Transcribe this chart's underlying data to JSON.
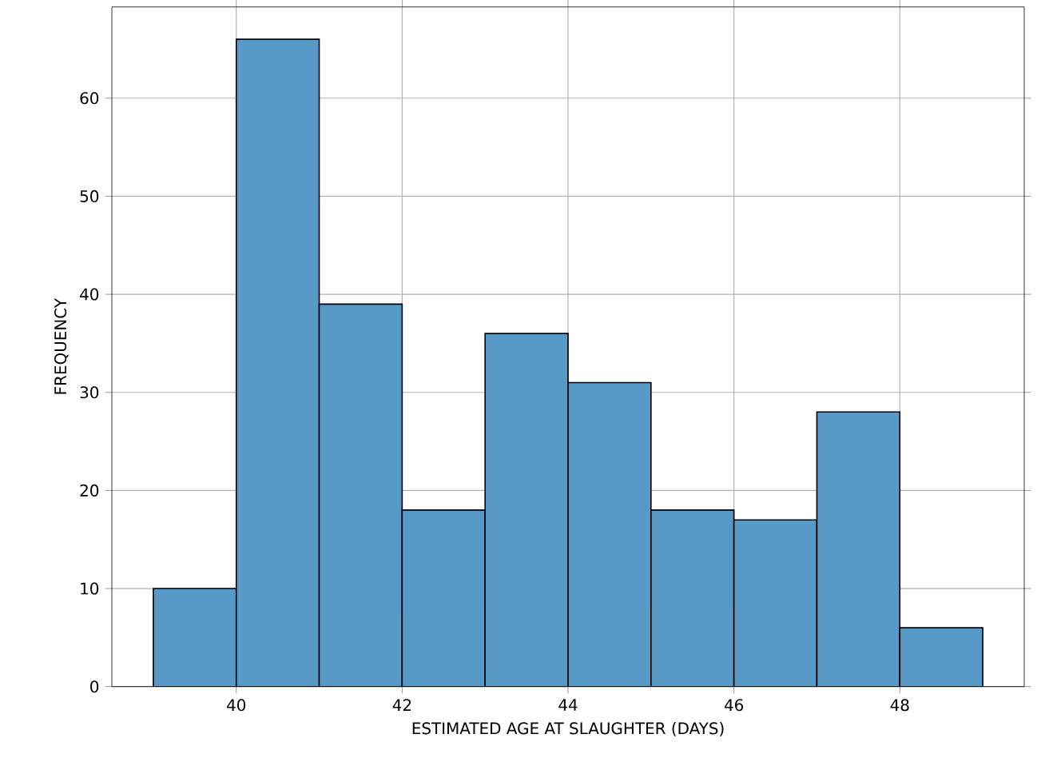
{
  "chart_data": {
    "type": "histogram",
    "xlabel": "ESTIMATED AGE AT SLAUGHTER (DAYS)",
    "ylabel": "FREQUENCY",
    "bins": [
      39,
      40,
      41,
      42,
      43,
      44,
      45,
      46,
      47,
      48,
      49
    ],
    "values": [
      10,
      66,
      39,
      18,
      36,
      31,
      18,
      17,
      28,
      6
    ],
    "color": "#5799c7",
    "xlim": [
      38.5,
      49.5
    ],
    "ylim": [
      0,
      69.3
    ],
    "xticks": [
      40,
      42,
      44,
      46,
      48
    ],
    "yticks": [
      0,
      10,
      20,
      30,
      40,
      50,
      60
    ],
    "grid": true
  }
}
